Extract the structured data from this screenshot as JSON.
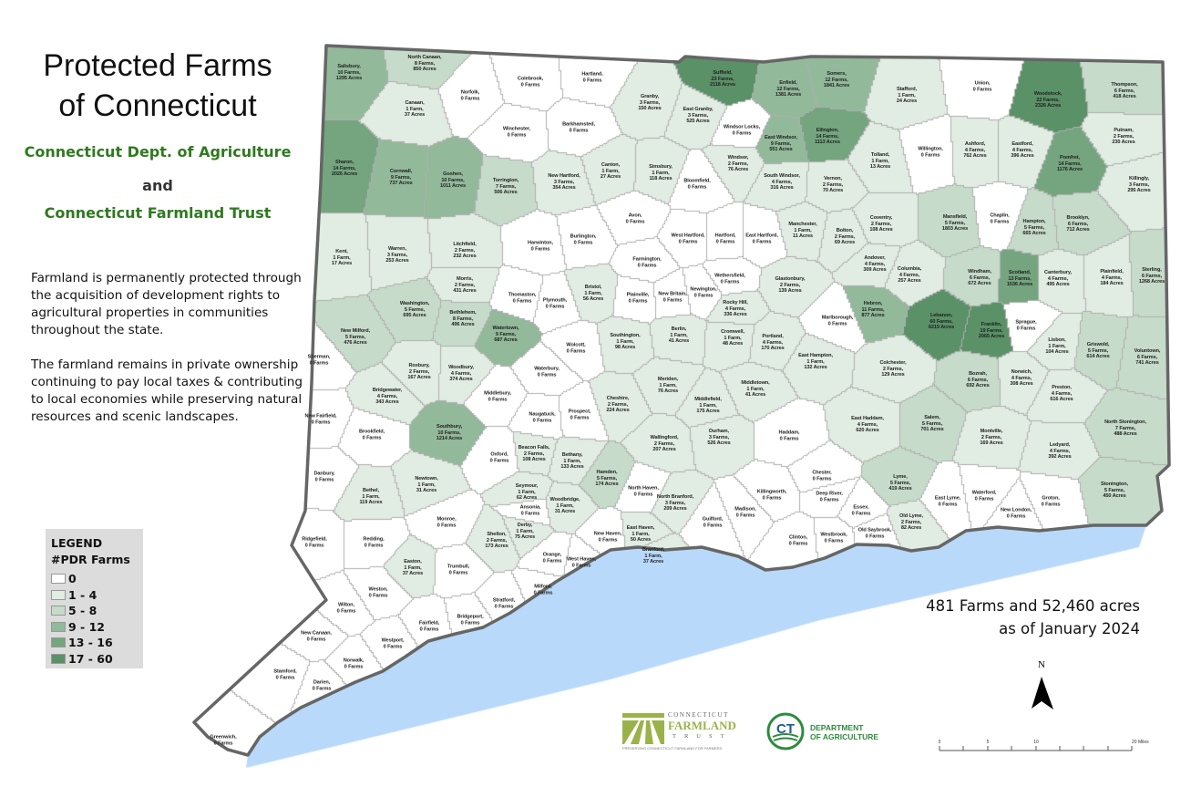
{
  "title": {
    "line1": "Protected Farms",
    "line2": "of Connecticut"
  },
  "subtitles": {
    "agency": "Connecticut Dept. of Agriculture",
    "and": "and",
    "trust": "Connecticut Farmland Trust"
  },
  "paragraphs": [
    "Farmland is permanently protected through the acquisition of development rights to agricultural properties in communities throughout the state.",
    "The farmland remains in private ownership continuing to pay local taxes & contributing to local economies while preserving natural resources and scenic landscapes."
  ],
  "legend": {
    "heading": "LEGEND",
    "subheading": "#PDR Farms",
    "classes": [
      {
        "label": "0",
        "min": 0,
        "max": 0,
        "color": "#ffffff"
      },
      {
        "label": "1 - 4",
        "min": 1,
        "max": 4,
        "color": "#e1ece2"
      },
      {
        "label": "5 - 8",
        "min": 5,
        "max": 8,
        "color": "#c6dbc9"
      },
      {
        "label": "9 - 12",
        "min": 9,
        "max": 12,
        "color": "#92b99a"
      },
      {
        "label": "13 - 16",
        "min": 13,
        "max": 16,
        "color": "#74a57f"
      },
      {
        "label": "17 - 60",
        "min": 17,
        "max": 60,
        "color": "#5a9167"
      }
    ]
  },
  "summary": {
    "line1": "481 Farms and 52,460 acres",
    "line2": "as of January 2024"
  },
  "north_arrow": {
    "label": "N"
  },
  "scale_bar": {
    "labels": [
      "0",
      "5",
      "10",
      "20 Miles"
    ]
  },
  "logos": {
    "farmland_trust": {
      "line1": "CONNECTICUT",
      "line2": "FARMLAND",
      "line3": "TRUST",
      "tagline": "PRESERVING CONNECTICUT FARMLAND FOR FARMERS"
    },
    "dept_agriculture": {
      "mark": "CT",
      "line1": "DEPARTMENT",
      "line2": "OF AGRICULTURE"
    }
  },
  "colors": {
    "water": "#b9d9fb",
    "state_border": "#666666",
    "town_border": "#777777",
    "green_text": "#2f7a1f"
  },
  "towns": [
    [
      "Salisbury,",
      "10 Farms,",
      "1295 Acres"
    ],
    [
      "North Canaan,",
      "8 Farms,",
      "850 Acres"
    ],
    [
      "Canaan,",
      "1 Farm,",
      "37 Acres"
    ],
    [
      "Norfolk,",
      "0 Farms"
    ],
    [
      "Colebrook,",
      "0 Farms"
    ],
    [
      "Hartland,",
      "0 Farms"
    ],
    [
      "Sharon,",
      "14 Farms,",
      "2026 Acres"
    ],
    [
      "Cornwall,",
      "9 Farms,",
      "737 Acres"
    ],
    [
      "Goshen,",
      "10 Farms,",
      "1011 Acres"
    ],
    [
      "Winchester,",
      "0 Farms"
    ],
    [
      "Barkhamsted,",
      "0 Farms"
    ],
    [
      "Torrington,",
      "7 Farms,",
      "506 Acres"
    ],
    [
      "New Hartford,",
      "3 Farms,",
      "354 Acres"
    ],
    [
      "Kent,",
      "1 Farm,",
      "17 Acres"
    ],
    [
      "Warren,",
      "3 Farms,",
      "253 Acres"
    ],
    [
      "Litchfield,",
      "2 Farms,",
      "232 Acres"
    ],
    [
      "Harwinton,",
      "0 Farms"
    ],
    [
      "Burlington,",
      "0 Farms"
    ],
    [
      "Morris,",
      "2 Farms,",
      "431 Acres"
    ],
    [
      "Washington,",
      "5 Farms,",
      "695 Acres"
    ],
    [
      "Bethlehem,",
      "8 Farms,",
      "496 Acres"
    ],
    [
      "Thomaston,",
      "0 Farms"
    ],
    [
      "Plymouth,",
      "0 Farms"
    ],
    [
      "Watertown,",
      "9 Farms,",
      "687 Acres"
    ],
    [
      "New Milford,",
      "5 Farms,",
      "476 Acres"
    ],
    [
      "Sherman,",
      "0 Farms"
    ],
    [
      "Roxbury,",
      "2 Farms,",
      "167 Acres"
    ],
    [
      "Woodbury,",
      "4 Farms,",
      "374 Acres"
    ],
    [
      "Bridgewater,",
      "4 Farms,",
      "343 Acres"
    ],
    [
      "Middlebury,",
      "0 Farms"
    ],
    [
      "Wolcott,",
      "0 Farms"
    ],
    [
      "Waterbury,",
      "0 Farms"
    ],
    [
      "Bristol,",
      "1 Farm,",
      "56 Acres"
    ],
    [
      "New Fairfield,",
      "0 Farms"
    ],
    [
      "Brookfield,",
      "0 Farms"
    ],
    [
      "Southbury,",
      "10 Farms,",
      "1214 Acres"
    ],
    [
      "Naugatuck,",
      "0 Farms"
    ],
    [
      "Prospect,",
      "0 Farms"
    ],
    [
      "Oxford,",
      "0 Farms"
    ],
    [
      "Beacon Falls,",
      "2 Farms,",
      "108 Acres"
    ],
    [
      "Bethany,",
      "1 Farm,",
      "133 Acres"
    ],
    [
      "Danbury,",
      "0 Farms"
    ],
    [
      "Newtown,",
      "1 Farm,",
      "31 Acres"
    ],
    [
      "Bethel,",
      "1 Farm,",
      "119 Acres"
    ],
    [
      "Seymour,",
      "1 Farm,",
      "62 Acres"
    ],
    [
      "Woodbridge,",
      "1 Farm,",
      "31 Acres"
    ],
    [
      "Ansonia,",
      "0 Farms"
    ],
    [
      "Derby,",
      "1 Farm,",
      "75 Acres"
    ],
    [
      "Monroe,",
      "0 Farms"
    ],
    [
      "Shelton,",
      "2 Farms,",
      "173 Acres"
    ],
    [
      "Ridgefield,",
      "0 Farms"
    ],
    [
      "Redding,",
      "0 Farms"
    ],
    [
      "Easton,",
      "1 Farm,",
      "37 Acres"
    ],
    [
      "Trumbull,",
      "0 Farms"
    ],
    [
      "Weston,",
      "0 Farms"
    ],
    [
      "Wilton,",
      "0 Farms"
    ],
    [
      "Fairfield,",
      "0 Farms"
    ],
    [
      "Bridgeport,",
      "0 Farms"
    ],
    [
      "Stratford,",
      "0 Farms"
    ],
    [
      "Milford,",
      "0 Farms"
    ],
    [
      "Orange,",
      "0 Farms"
    ],
    [
      "West Haven,",
      "0 Farms"
    ],
    [
      "New Haven,",
      "0 Farms"
    ],
    [
      "New Canaan,",
      "0 Farms"
    ],
    [
      "Westport,",
      "0 Farms"
    ],
    [
      "Norwalk,",
      "0 Farms"
    ],
    [
      "Stamford,",
      "0 Farms"
    ],
    [
      "Darien,",
      "0 Farms"
    ],
    [
      "Greenwich,",
      "0 Farms"
    ],
    [
      "Hamden,",
      "5 Farms,",
      "174 Acres"
    ],
    [
      "North Haven,",
      "0 Farms"
    ],
    [
      "East Haven,",
      "1 Farm,",
      "50 Acres"
    ],
    [
      "Branford,",
      "1 Farm,",
      "37 Acres"
    ],
    [
      "North Branford,",
      "3 Farms,",
      "209 Acres"
    ],
    [
      "Guilford,",
      "0 Farms"
    ],
    [
      "Madison,",
      "0 Farms"
    ],
    [
      "Killingworth,",
      "0 Farms"
    ],
    [
      "Clinton,",
      "0 Farms"
    ],
    [
      "Westbrook,",
      "0 Farms"
    ],
    [
      "Old Saybrook,",
      "0 Farms"
    ],
    [
      "Essex,",
      "0 Farms"
    ],
    [
      "Deep River,",
      "0 Farms"
    ],
    [
      "Chester,",
      "0 Farms"
    ],
    [
      "Haddam,",
      "0 Farms"
    ],
    [
      "Durham,",
      "3 Farms,",
      "526 Acres"
    ],
    [
      "Middlefield,",
      "1 Farm,",
      "175 Acres"
    ],
    [
      "Middletown,",
      "1 Farm,",
      "41 Acres"
    ],
    [
      "Wallingford,",
      "2 Farms,",
      "207 Acres"
    ],
    [
      "Cheshire,",
      "2 Farms,",
      "224 Acres"
    ],
    [
      "Meriden,",
      "1 Farm,",
      "76 Acres"
    ],
    [
      "Southington,",
      "1 Farm,",
      "98 Acres"
    ],
    [
      "Berlin,",
      "1 Farm,",
      "41 Acres"
    ],
    [
      "Cromwell,",
      "1 Farm,",
      "48 Acres"
    ],
    [
      "Portland,",
      "4 Farms,",
      "170 Acres"
    ],
    [
      "East Hampton,",
      "1 Farm,",
      "132 Acres"
    ],
    [
      "East Haddam,",
      "4 Farms,",
      "620 Acres"
    ],
    [
      "Marlborough,",
      "0 Farms"
    ],
    [
      "Colchester,",
      "2 Farms,",
      "129 Acres"
    ],
    [
      "Hebron,",
      "11 Farms,",
      "877 Acres"
    ],
    [
      "Plainville,",
      "0 Farms"
    ],
    [
      "New Britain,",
      "0 Farms"
    ],
    [
      "Newington,",
      "0 Farms"
    ],
    [
      "Rocky Hill,",
      "4 Farms,",
      "336 Acres"
    ],
    [
      "Wethersfield,",
      "0 Farms"
    ],
    [
      "Farmington,",
      "0 Farms"
    ],
    [
      "Avon,",
      "0 Farms"
    ],
    [
      "West Hartford,",
      "0 Farms"
    ],
    [
      "Hartford,",
      "0 Farms"
    ],
    [
      "East Hartford,",
      "0 Farms"
    ],
    [
      "Glastonbury,",
      "2 Farms,",
      "139 Acres"
    ],
    [
      "Manchester,",
      "1 Farm,",
      "11 Acres"
    ],
    [
      "Bloomfield,",
      "0 Farms"
    ],
    [
      "Canton,",
      "1 Farm,",
      "27 Acres"
    ],
    [
      "Simsbury,",
      "1 Farm,",
      "118 Acres"
    ],
    [
      "Granby,",
      "3 Farms,",
      "150 Acres"
    ],
    [
      "East Granby,",
      "3 Farms,",
      "525 Acres"
    ],
    [
      "Windsor Locks,",
      "0 Farms"
    ],
    [
      "Windsor,",
      "2 Farms,",
      "76 Acres"
    ],
    [
      "Suffield,",
      "23 Farms,",
      "2118 Acres"
    ],
    [
      "Enfield,",
      "12 Farms,",
      "1381 Acres"
    ],
    [
      "East Windsor,",
      "9 Farms,",
      "551 Acres"
    ],
    [
      "South Windsor,",
      "4 Farms,",
      "316 Acres"
    ],
    [
      "Somers,",
      "12 Farms,",
      "1841 Acres"
    ],
    [
      "Ellington,",
      "14 Farms,",
      "1113 Acres"
    ],
    [
      "Vernon,",
      "2 Farms,",
      "70 Acres"
    ],
    [
      "Tolland,",
      "1 Farm,",
      "13 Acres"
    ],
    [
      "Bolton,",
      "2 Farms,",
      "69 Acres"
    ],
    [
      "Coventry,",
      "2 Farms,",
      "108 Acres"
    ],
    [
      "Andover,",
      "4 Farms,",
      "309 Acres"
    ],
    [
      "Stafford,",
      "1 Farm,",
      "24 Acres"
    ],
    [
      "Union,",
      "0 Farms"
    ],
    [
      "Willington,",
      "0 Farms"
    ],
    [
      "Ashford,",
      "4 Farms,",
      "762 Acres"
    ],
    [
      "Eastford,",
      "4 Farms,",
      "396 Acres"
    ],
    [
      "Woodstock,",
      "22 Farms,",
      "2326 Acres"
    ],
    [
      "Thompson,",
      "6 Farms,",
      "418 Acres"
    ],
    [
      "Putnam,",
      "2 Farms,",
      "230 Acres"
    ],
    [
      "Pomfret,",
      "14 Farms,",
      "1176 Acres"
    ],
    [
      "Killingly,",
      "3 Farms,",
      "295 Acres"
    ],
    [
      "Mansfield,",
      "5 Farms,",
      "1803 Acres"
    ],
    [
      "Chaplin,",
      "0 Farms"
    ],
    [
      "Hampton,",
      "5 Farms,",
      "665 Acres"
    ],
    [
      "Brooklyn,",
      "6 Farms,",
      "712 Acres"
    ],
    [
      "Columbia,",
      "4 Farms,",
      "257 Acres"
    ],
    [
      "Windham,",
      "6 Farms,",
      "672 Acres"
    ],
    [
      "Scotland,",
      "13 Farms,",
      "1536 Acres"
    ],
    [
      "Canterbury,",
      "4 Farms,",
      "495 Acres"
    ],
    [
      "Plainfield,",
      "4 Farms,",
      "184 Acres"
    ],
    [
      "Sterling,",
      "6 Farms,",
      "1268 Acres"
    ],
    [
      "Lebanon,",
      "60 Farms,",
      "6219 Acres"
    ],
    [
      "Franklin,",
      "19 Farms,",
      "2065 Acres"
    ],
    [
      "Sprague,",
      "0 Farms"
    ],
    [
      "Lisbon,",
      "1 Farm,",
      "104 Acres"
    ],
    [
      "Griswold,",
      "5 Farms,",
      "614 Acres"
    ],
    [
      "Voluntown,",
      "6 Farms,",
      "741 Acres"
    ],
    [
      "Bozrah,",
      "6 Farms,",
      "692 Acres"
    ],
    [
      "Norwich,",
      "4 Farms,",
      "308 Acres"
    ],
    [
      "Preston,",
      "4 Farms,",
      "616 Acres"
    ],
    [
      "Salem,",
      "5 Farms,",
      "701 Acres"
    ],
    [
      "Montville,",
      "2 Farms,",
      "169 Acres"
    ],
    [
      "Ledyard,",
      "4 Farms,",
      "392 Acres"
    ],
    [
      "North Stonington,",
      "7 Farms,",
      "488 Acres"
    ],
    [
      "Lyme,",
      "5 Farms,",
      "419 Acres"
    ],
    [
      "Old Lyme,",
      "2 Farms,",
      "82 Acres"
    ],
    [
      "East Lyme,",
      "0 Farms"
    ],
    [
      "Waterford,",
      "0 Farms"
    ],
    [
      "New London,",
      "0 Farms"
    ],
    [
      "Groton,",
      "0 Farms"
    ],
    [
      "Stonington,",
      "5 Farms,",
      "450 Acres"
    ]
  ]
}
